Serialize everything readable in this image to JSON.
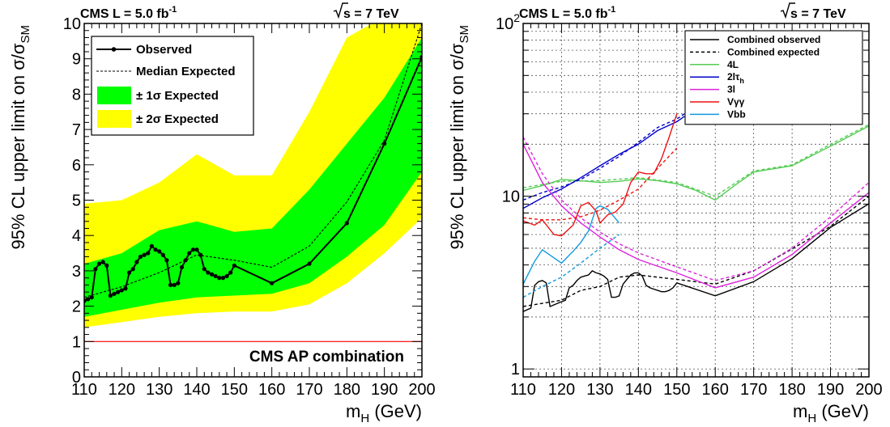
{
  "chart_data": [
    {
      "type": "line",
      "header_left": "CMS L = 5.0 fb",
      "header_left_sup": "-1",
      "header_right": "s = 7 TeV",
      "ylabel": "95% CL upper limit on σ/σ",
      "ylabel_sub": "SM",
      "xlabel": "m",
      "xlabel_sub": "H",
      "xlabel_unit": " (GeV)",
      "xlim": [
        110,
        200
      ],
      "ylim": [
        0,
        10
      ],
      "x_ticks": [
        "110",
        "120",
        "130",
        "140",
        "150",
        "160",
        "170",
        "180",
        "190",
        "200"
      ],
      "y_ticks": [
        "0",
        "1",
        "2",
        "3",
        "4",
        "5",
        "6",
        "7",
        "8",
        "9",
        "10"
      ],
      "legend": {
        "observed": "Observed",
        "expected": "Median Expected",
        "band1": "± 1σ Expected",
        "band2": "± 2σ Expected"
      },
      "annotation": "CMS AP combination",
      "reference_line_y": 1,
      "colors": {
        "band1": "#00ff00",
        "band2": "#ffff00",
        "reference": "#ff0000",
        "line": "#000000"
      },
      "x": [
        110,
        120,
        130,
        140,
        150,
        160,
        170,
        180,
        190,
        200
      ],
      "band2_low": [
        1.4,
        1.55,
        1.7,
        1.8,
        1.85,
        1.85,
        2.05,
        2.65,
        3.5,
        4.5
      ],
      "band2_high": [
        4.9,
        5.0,
        5.5,
        6.3,
        5.7,
        5.7,
        7.5,
        9.6,
        10.2,
        10.4
      ],
      "band1_low": [
        1.7,
        1.9,
        2.1,
        2.25,
        2.3,
        2.35,
        2.65,
        3.4,
        4.3,
        5.8
      ],
      "band1_high": [
        3.2,
        3.5,
        4.15,
        4.4,
        4.1,
        4.2,
        5.3,
        6.6,
        7.9,
        9.6
      ],
      "expected": [
        2.25,
        2.55,
        2.95,
        3.45,
        3.3,
        3.1,
        3.7,
        4.95,
        6.7,
        10.0
      ],
      "observed_x": [
        110,
        111,
        112,
        113,
        114,
        115,
        116,
        117,
        118,
        119,
        120,
        121,
        122,
        123,
        124,
        125,
        126,
        127,
        128,
        129,
        130,
        131,
        132,
        133,
        134,
        135,
        136,
        137,
        138,
        139,
        140,
        141,
        142,
        143,
        144,
        145,
        146,
        147,
        148,
        149,
        150,
        160,
        170,
        180,
        190,
        200
      ],
      "observed": [
        2.15,
        2.2,
        2.25,
        3.05,
        3.2,
        3.25,
        3.15,
        2.3,
        2.35,
        2.4,
        2.45,
        2.5,
        2.95,
        3.05,
        3.25,
        3.4,
        3.45,
        3.5,
        3.7,
        3.6,
        3.55,
        3.45,
        3.3,
        2.6,
        2.6,
        2.65,
        3.1,
        3.3,
        3.5,
        3.6,
        3.6,
        3.45,
        3.05,
        2.95,
        2.9,
        2.85,
        2.8,
        2.8,
        2.85,
        2.95,
        3.15,
        2.65,
        3.2,
        4.35,
        6.6,
        9.05
      ]
    },
    {
      "type": "line",
      "header_left": "CMS L = 5.0 fb",
      "header_left_sup": "-1",
      "header_right": "s = 7 TeV",
      "ylabel": "95% CL upper limit on σ/σ",
      "ylabel_sub": "SM",
      "xlabel": "m",
      "xlabel_sub": "H",
      "xlabel_unit": " (GeV)",
      "xlim": [
        110,
        200
      ],
      "ylim": [
        0.9,
        100
      ],
      "y_scale": "log",
      "grid": true,
      "x_ticks": [
        "110",
        "120",
        "130",
        "140",
        "150",
        "160",
        "170",
        "180",
        "190",
        "200"
      ],
      "y_ticks": [
        {
          "label": "1",
          "value": 1
        },
        {
          "label": "10",
          "value": 10
        },
        {
          "label": "10",
          "sup": "2",
          "value": 100
        }
      ],
      "legend_placement": "top-right",
      "series": [
        {
          "name": "Combined observed",
          "color": "#000000",
          "dashed": false,
          "x": [
            110,
            111,
            112,
            113,
            114,
            115,
            116,
            117,
            118,
            119,
            120,
            121,
            122,
            123,
            124,
            125,
            126,
            127,
            128,
            129,
            130,
            131,
            132,
            133,
            134,
            135,
            136,
            137,
            138,
            139,
            140,
            141,
            142,
            143,
            144,
            145,
            146,
            147,
            148,
            149,
            150,
            160,
            170,
            180,
            190,
            200
          ],
          "y": [
            2.15,
            2.2,
            2.25,
            3.05,
            3.2,
            3.25,
            3.15,
            2.3,
            2.35,
            2.4,
            2.45,
            2.5,
            2.95,
            3.05,
            3.25,
            3.4,
            3.45,
            3.5,
            3.7,
            3.6,
            3.55,
            3.45,
            3.3,
            2.6,
            2.6,
            2.65,
            3.1,
            3.3,
            3.5,
            3.6,
            3.6,
            3.45,
            3.05,
            2.95,
            2.9,
            2.85,
            2.8,
            2.8,
            2.85,
            2.95,
            3.15,
            2.65,
            3.2,
            4.35,
            6.6,
            9.05
          ]
        },
        {
          "name": "Combined expected",
          "color": "#000000",
          "dashed": true,
          "x": [
            110,
            120,
            125,
            130,
            135,
            140,
            150,
            160,
            170,
            180,
            190,
            200
          ],
          "y": [
            2.3,
            2.5,
            2.85,
            3.0,
            3.4,
            3.5,
            3.3,
            3.1,
            3.7,
            4.95,
            6.7,
            10.0
          ]
        },
        {
          "name": "4L",
          "color": "#55cc55",
          "dashed": false,
          "x": [
            110,
            115,
            120,
            125,
            130,
            135,
            140,
            145,
            150,
            155,
            160,
            165,
            170,
            180,
            190,
            200
          ],
          "y": [
            10.8,
            11.5,
            12.5,
            12.3,
            12.0,
            12.2,
            12.6,
            12.3,
            11.8,
            10.8,
            9.5,
            11.5,
            13.8,
            15.0,
            19.5,
            25.5
          ]
        },
        {
          "name": "4L expected",
          "color": "#55cc55",
          "dashed": true,
          "x": [
            110,
            120,
            130,
            140,
            150,
            160,
            170,
            180,
            190,
            200
          ],
          "y": [
            11.2,
            12.2,
            12.3,
            12.8,
            12.0,
            10.0,
            14.0,
            15.2,
            20.0,
            26.0
          ]
        },
        {
          "name": "2lτh",
          "color": "#0000cc",
          "dashed": false,
          "x": [
            110,
            115,
            120,
            125,
            130,
            135,
            140,
            145,
            150,
            152
          ],
          "y": [
            8.5,
            9.8,
            11.0,
            12.8,
            15.0,
            17.5,
            20.0,
            24.0,
            27.0,
            29.0
          ]
        },
        {
          "name": "2lτh expected",
          "color": "#0000cc",
          "dashed": true,
          "x": [
            110,
            115,
            120,
            125,
            130,
            135,
            140,
            145,
            150,
            152
          ],
          "y": [
            9.5,
            10.5,
            11.3,
            12.5,
            14.5,
            17.0,
            20.5,
            25.0,
            28.0,
            30.0
          ]
        },
        {
          "name": "3l",
          "color": "#dd22dd",
          "dashed": false,
          "x": [
            110,
            115,
            120,
            125,
            130,
            135,
            140,
            150,
            160,
            170,
            180,
            190,
            200
          ],
          "y": [
            20.0,
            12.0,
            8.8,
            7.0,
            5.8,
            4.9,
            4.3,
            3.6,
            2.95,
            3.4,
            4.6,
            7.0,
            10.5
          ]
        },
        {
          "name": "3l expected",
          "color": "#dd22dd",
          "dashed": true,
          "x": [
            110,
            115,
            120,
            125,
            130,
            135,
            140,
            150,
            160,
            170,
            180,
            190,
            200
          ],
          "y": [
            22.0,
            13.5,
            9.5,
            7.5,
            6.2,
            5.3,
            4.7,
            3.9,
            3.25,
            3.7,
            5.0,
            7.6,
            12.0
          ]
        },
        {
          "name": "Vγγ",
          "color": "#ee1111",
          "dashed": false,
          "x": [
            110,
            113,
            115,
            118,
            120,
            123,
            125,
            127,
            129,
            130,
            132,
            134,
            136,
            138,
            140,
            142,
            144,
            146,
            148,
            150
          ],
          "y": [
            7.2,
            6.8,
            7.3,
            6.0,
            5.9,
            6.8,
            8.8,
            9.2,
            8.2,
            7.0,
            7.8,
            8.1,
            9.0,
            12.0,
            13.8,
            13.5,
            13.5,
            16.5,
            22.0,
            30.0
          ]
        },
        {
          "name": "Vγγ expected",
          "color": "#ee1111",
          "dashed": true,
          "x": [
            110,
            115,
            120,
            125,
            130,
            135,
            140,
            145,
            150
          ],
          "y": [
            7.5,
            7.3,
            7.3,
            7.6,
            8.3,
            9.5,
            11.0,
            14.5,
            19.0
          ]
        },
        {
          "name": "Vbb",
          "color": "#1199dd",
          "dashed": false,
          "x": [
            110,
            113,
            115,
            118,
            120,
            123,
            125,
            127,
            129,
            130,
            132,
            135
          ],
          "y": [
            3.1,
            4.2,
            4.9,
            4.4,
            4.1,
            4.8,
            5.4,
            6.3,
            8.5,
            8.8,
            8.4,
            7.0
          ]
        },
        {
          "name": "Vbb expected",
          "color": "#1199dd",
          "dashed": true,
          "x": [
            110,
            115,
            120,
            125,
            130,
            135
          ],
          "y": [
            2.6,
            3.0,
            3.4,
            4.1,
            5.0,
            6.0
          ]
        }
      ],
      "legend": [
        {
          "label": "Combined observed",
          "color": "#000000",
          "dashed": false
        },
        {
          "label": "Combined expected",
          "color": "#000000",
          "dashed": true
        },
        {
          "label": "4L",
          "color": "#55cc55",
          "dashed": false
        },
        {
          "label": "2lτ",
          "sub": "h",
          "color": "#0000cc",
          "dashed": false
        },
        {
          "label": "3l",
          "color": "#dd22dd",
          "dashed": false
        },
        {
          "label": "Vγγ",
          "color": "#ee1111",
          "dashed": false
        },
        {
          "label": "Vbb",
          "color": "#1199dd",
          "dashed": false
        }
      ]
    }
  ]
}
